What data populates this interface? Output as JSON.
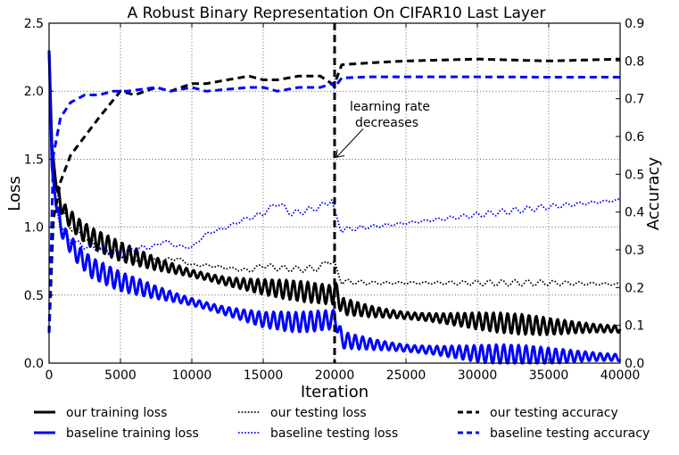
{
  "chart_data": {
    "type": "line",
    "title": "A Robust Binary Representation On CIFAR10 Last Layer",
    "xlabel": "Iteration",
    "ylabel_left": "Loss",
    "ylabel_right": "Accuracy",
    "xlim": [
      0,
      40000
    ],
    "ylim_left": [
      0,
      2.5
    ],
    "ylim_right": [
      0,
      0.9
    ],
    "x_ticks": [
      0,
      5000,
      10000,
      15000,
      20000,
      25000,
      30000,
      35000,
      40000
    ],
    "x_tick_labels": [
      "0",
      "5000",
      "10000",
      "15000",
      "20000",
      "25000",
      "30000",
      "35000",
      "40000"
    ],
    "y_left_ticks": [
      0,
      0.5,
      1.0,
      1.5,
      2.0,
      2.5
    ],
    "y_left_tick_labels": [
      "0.0",
      "0.5",
      "1.0",
      "1.5",
      "2.0",
      "2.5"
    ],
    "y_right_ticks": [
      0,
      0.1,
      0.2,
      0.3,
      0.4,
      0.5,
      0.6,
      0.7,
      0.8,
      0.9
    ],
    "y_right_tick_labels": [
      "0.0",
      "0.1",
      "0.2",
      "0.3",
      "0.4",
      "0.5",
      "0.6",
      "0.7",
      "0.8",
      "0.9"
    ],
    "grid": true,
    "legend_position": "bottom",
    "annotation": {
      "lines": [
        "learning rate",
        "decreases"
      ],
      "x": 20000,
      "y_left": 1.5
    },
    "vline_x": 20000,
    "series": [
      {
        "name": "our training loss",
        "axis": "left",
        "style": "solid",
        "color": "#000000",
        "osc": 0.05,
        "osc_period": 500,
        "x": [
          0,
          200,
          500,
          1000,
          2000,
          3000,
          5000,
          7500,
          10000,
          12500,
          15000,
          17500,
          19900,
          20000,
          20500,
          22500,
          25000,
          27500,
          30000,
          32500,
          35000,
          37500,
          40000
        ],
        "y": [
          2.3,
          1.6,
          1.3,
          1.12,
          1.0,
          0.92,
          0.82,
          0.73,
          0.66,
          0.6,
          0.56,
          0.53,
          0.5,
          0.55,
          0.42,
          0.38,
          0.35,
          0.33,
          0.31,
          0.29,
          0.27,
          0.26,
          0.25
        ]
      },
      {
        "name": "baseline training loss",
        "axis": "left",
        "style": "solid",
        "color": "#0000ff",
        "osc": 0.05,
        "osc_period": 520,
        "x": [
          0,
          200,
          500,
          1000,
          2000,
          3000,
          5000,
          7500,
          10000,
          12500,
          15000,
          17500,
          19900,
          20000,
          20500,
          22500,
          25000,
          27500,
          30000,
          32500,
          35000,
          37500,
          40000
        ],
        "y": [
          2.3,
          1.45,
          1.15,
          0.95,
          0.8,
          0.7,
          0.6,
          0.52,
          0.45,
          0.38,
          0.32,
          0.3,
          0.32,
          0.35,
          0.17,
          0.14,
          0.11,
          0.09,
          0.07,
          0.06,
          0.05,
          0.05,
          0.04
        ]
      },
      {
        "name": "our testing loss",
        "axis": "left",
        "style": "dotted",
        "color": "#000000",
        "osc": 0.015,
        "osc_period": 900,
        "x": [
          0,
          300,
          800,
          1500,
          2500,
          4000,
          5000,
          6000,
          7500,
          9000,
          10000,
          11000,
          12500,
          14000,
          15000,
          16000,
          17500,
          19000,
          19500,
          20000,
          20500,
          22500,
          25000,
          30000,
          35000,
          40000
        ],
        "y": [
          2.2,
          1.4,
          1.15,
          1.0,
          0.92,
          0.82,
          0.8,
          0.77,
          0.75,
          0.77,
          0.72,
          0.72,
          0.7,
          0.68,
          0.72,
          0.7,
          0.69,
          0.7,
          0.76,
          0.72,
          0.6,
          0.59,
          0.59,
          0.59,
          0.59,
          0.58
        ]
      },
      {
        "name": "baseline testing loss",
        "axis": "left",
        "style": "dotted",
        "color": "#0000ff",
        "osc": 0.015,
        "osc_period": 900,
        "x": [
          0,
          300,
          800,
          1500,
          2500,
          4000,
          5000,
          6000,
          7500,
          8000,
          9000,
          10000,
          11000,
          12500,
          13500,
          15000,
          16000,
          17000,
          18000,
          19000,
          19800,
          20000,
          20500,
          25000,
          30000,
          35000,
          40000
        ],
        "y": [
          2.2,
          1.3,
          1.0,
          0.9,
          0.86,
          0.83,
          0.8,
          0.84,
          0.86,
          0.9,
          0.86,
          0.85,
          0.95,
          1.0,
          1.05,
          1.1,
          1.18,
          1.1,
          1.12,
          1.15,
          1.2,
          1.1,
          0.98,
          1.03,
          1.09,
          1.15,
          1.2
        ]
      },
      {
        "name": "our testing accuracy",
        "axis": "right",
        "style": "dashed",
        "color": "#000000",
        "osc": 0,
        "osc_period": 1000,
        "x": [
          0,
          300,
          800,
          1500,
          2500,
          3500,
          5000,
          6000,
          7500,
          8500,
          10000,
          11000,
          12500,
          14000,
          15000,
          16000,
          17500,
          19000,
          19800,
          20000,
          20500,
          22500,
          25000,
          30000,
          35000,
          40000
        ],
        "y": [
          0.08,
          0.38,
          0.48,
          0.55,
          0.6,
          0.65,
          0.72,
          0.71,
          0.73,
          0.72,
          0.74,
          0.74,
          0.75,
          0.76,
          0.75,
          0.75,
          0.76,
          0.76,
          0.74,
          0.74,
          0.79,
          0.795,
          0.8,
          0.805,
          0.8,
          0.805
        ]
      },
      {
        "name": "baseline testing accuracy",
        "axis": "right",
        "style": "dashed",
        "color": "#0000ff",
        "osc": 0,
        "osc_period": 1000,
        "x": [
          0,
          300,
          800,
          1500,
          2500,
          3500,
          4500,
          5500,
          7500,
          8500,
          10000,
          11000,
          12500,
          14000,
          15000,
          16000,
          17500,
          19000,
          19800,
          20000,
          20500,
          22500,
          25000,
          30000,
          35000,
          40000
        ],
        "y": [
          0.08,
          0.55,
          0.65,
          0.69,
          0.71,
          0.71,
          0.72,
          0.72,
          0.73,
          0.72,
          0.73,
          0.72,
          0.725,
          0.73,
          0.73,
          0.72,
          0.73,
          0.73,
          0.74,
          0.73,
          0.755,
          0.758,
          0.758,
          0.758,
          0.757,
          0.757
        ]
      }
    ]
  }
}
